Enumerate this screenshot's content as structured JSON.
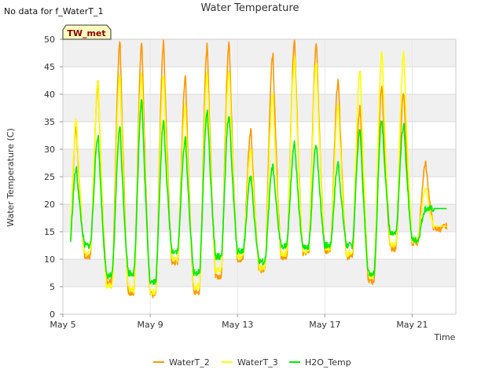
{
  "chart_data": {
    "type": "line",
    "title": "Water Temperature",
    "note": "No data for f_WaterT_1",
    "badge": "TW_met",
    "xlabel": "Time",
    "ylabel": "Water Temperature (C)",
    "xlim": [
      "2023-05-05",
      "2023-05-23"
    ],
    "ylim": [
      0,
      50
    ],
    "x_tick_labels": [
      "May 5",
      "May 9",
      "May 13",
      "May 17",
      "May 21"
    ],
    "y_ticks": [
      0,
      5,
      10,
      15,
      20,
      25,
      30,
      35,
      40,
      45,
      50
    ],
    "grid": true,
    "legend": "bottom",
    "daily_cycle": {
      "days": [
        "May 5",
        "May 6",
        "May 7",
        "May 8",
        "May 9",
        "May 10",
        "May 11",
        "May 12",
        "May 13",
        "May 14",
        "May 15",
        "May 16",
        "May 17",
        "May 18",
        "May 19",
        "May 20",
        "May 21",
        "May 22"
      ],
      "series": [
        {
          "name": "WaterT_2",
          "color": "#ff9900",
          "daily_min": [
            6.5,
            10.5,
            6.0,
            4.0,
            3.5,
            9.5,
            4.0,
            7.0,
            10.0,
            8.0,
            10.5,
            11.0,
            11.5,
            10.5,
            6.0,
            12.0,
            13.0,
            15.5
          ],
          "daily_max": [
            34,
            42,
            49.5,
            49.5,
            49.5,
            43,
            49,
            49.5,
            33.5,
            47.5,
            49.5,
            49.5,
            42.5,
            37.5,
            41.5,
            40.5,
            27.5,
            16
          ]
        },
        {
          "name": "WaterT_3",
          "color": "#ffff00",
          "daily_min": [
            7.0,
            11.0,
            5.0,
            4.5,
            4.0,
            10.0,
            5.0,
            8.0,
            10.5,
            8.5,
            11.0,
            11.5,
            12.0,
            11.0,
            7.0,
            12.5,
            13.5,
            16.0
          ],
          "daily_max": [
            35.5,
            42.5,
            43.5,
            44,
            43.5,
            38,
            44,
            44.5,
            30,
            40,
            46.5,
            46,
            38,
            44.5,
            48,
            47.5,
            23,
            16
          ]
        },
        {
          "name": "H2O_Temp",
          "color": "#00ee00",
          "daily_min": [
            8.5,
            12.5,
            7.0,
            7.5,
            6.0,
            11.5,
            7.5,
            10.5,
            11.5,
            9.5,
            12.5,
            12.0,
            12.5,
            12.5,
            7.5,
            14.5,
            13.5,
            19.2
          ],
          "daily_max": [
            26.5,
            32.5,
            34,
            39,
            35,
            32,
            37,
            36.5,
            25,
            27,
            31,
            31,
            27.5,
            33.5,
            35.5,
            34.5,
            19.2,
            19.2
          ]
        }
      ]
    }
  }
}
